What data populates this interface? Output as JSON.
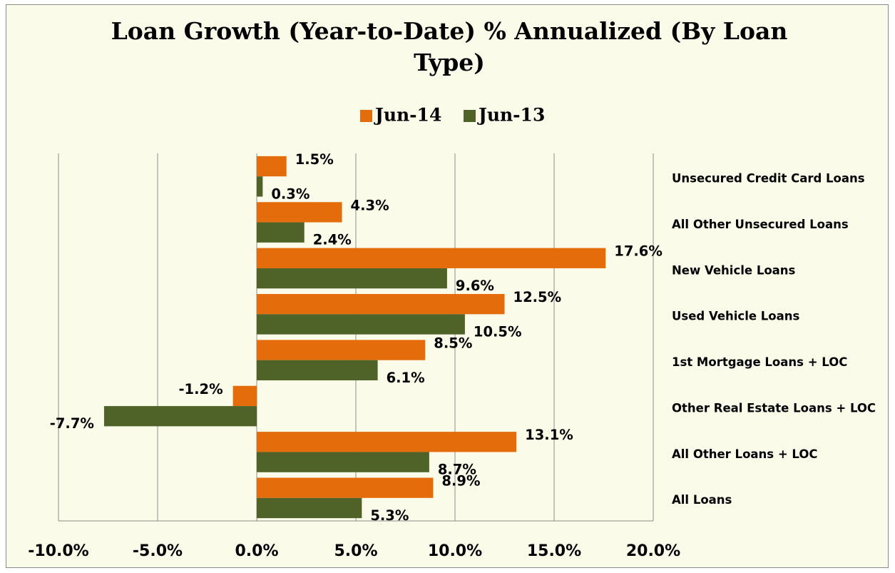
{
  "chart_data": {
    "type": "bar",
    "orientation": "horizontal",
    "title": "Loan Growth (Year-to-Date) % Annualized (By Loan Type)",
    "categories": [
      "Unsecured Credit Card Loans",
      "All Other Unsecured Loans",
      "New Vehicle Loans",
      "Used Vehicle Loans",
      "1st Mortgage Loans + LOC",
      "Other Real Estate Loans + LOC",
      "All Other Loans + LOC",
      "All Loans"
    ],
    "series": [
      {
        "name": "Jun-14",
        "color": "#e46c0a",
        "values": [
          1.5,
          4.3,
          17.6,
          12.5,
          8.5,
          -1.2,
          13.1,
          8.9
        ],
        "value_labels": [
          "1.5%",
          "4.3%",
          "17.6%",
          "12.5%",
          "8.5%",
          "-1.2%",
          "13.1%",
          "8.9%"
        ]
      },
      {
        "name": "Jun-13",
        "color": "#4f6228",
        "values": [
          0.3,
          2.4,
          9.6,
          10.5,
          6.1,
          -7.7,
          8.7,
          5.3
        ],
        "value_labels": [
          "0.3%",
          "2.4%",
          "9.6%",
          "10.5%",
          "6.1%",
          "-7.7%",
          "8.7%",
          "5.3%"
        ]
      }
    ],
    "xlim": [
      -10,
      20
    ],
    "xticks": [
      {
        "value": -10,
        "label": "-10.0%"
      },
      {
        "value": -5,
        "label": "-5.0%"
      },
      {
        "value": 0,
        "label": "0.0%"
      },
      {
        "value": 5,
        "label": "5.0%"
      },
      {
        "value": 10,
        "label": "10.0%"
      },
      {
        "value": 15,
        "label": "15.0%"
      },
      {
        "value": 20,
        "label": "20.0%"
      }
    ],
    "grid": true,
    "legend": "top"
  }
}
